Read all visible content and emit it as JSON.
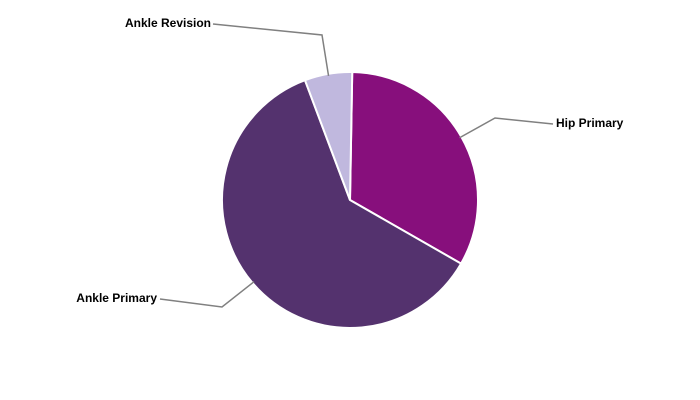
{
  "chart_data": {
    "type": "pie",
    "categories": [
      "Hip Primary",
      "Ankle Primary",
      "Ankle Revision"
    ],
    "values": [
      33,
      61,
      6
    ],
    "colors": [
      "#870f7c",
      "#54326e",
      "#c0b8de"
    ]
  }
}
